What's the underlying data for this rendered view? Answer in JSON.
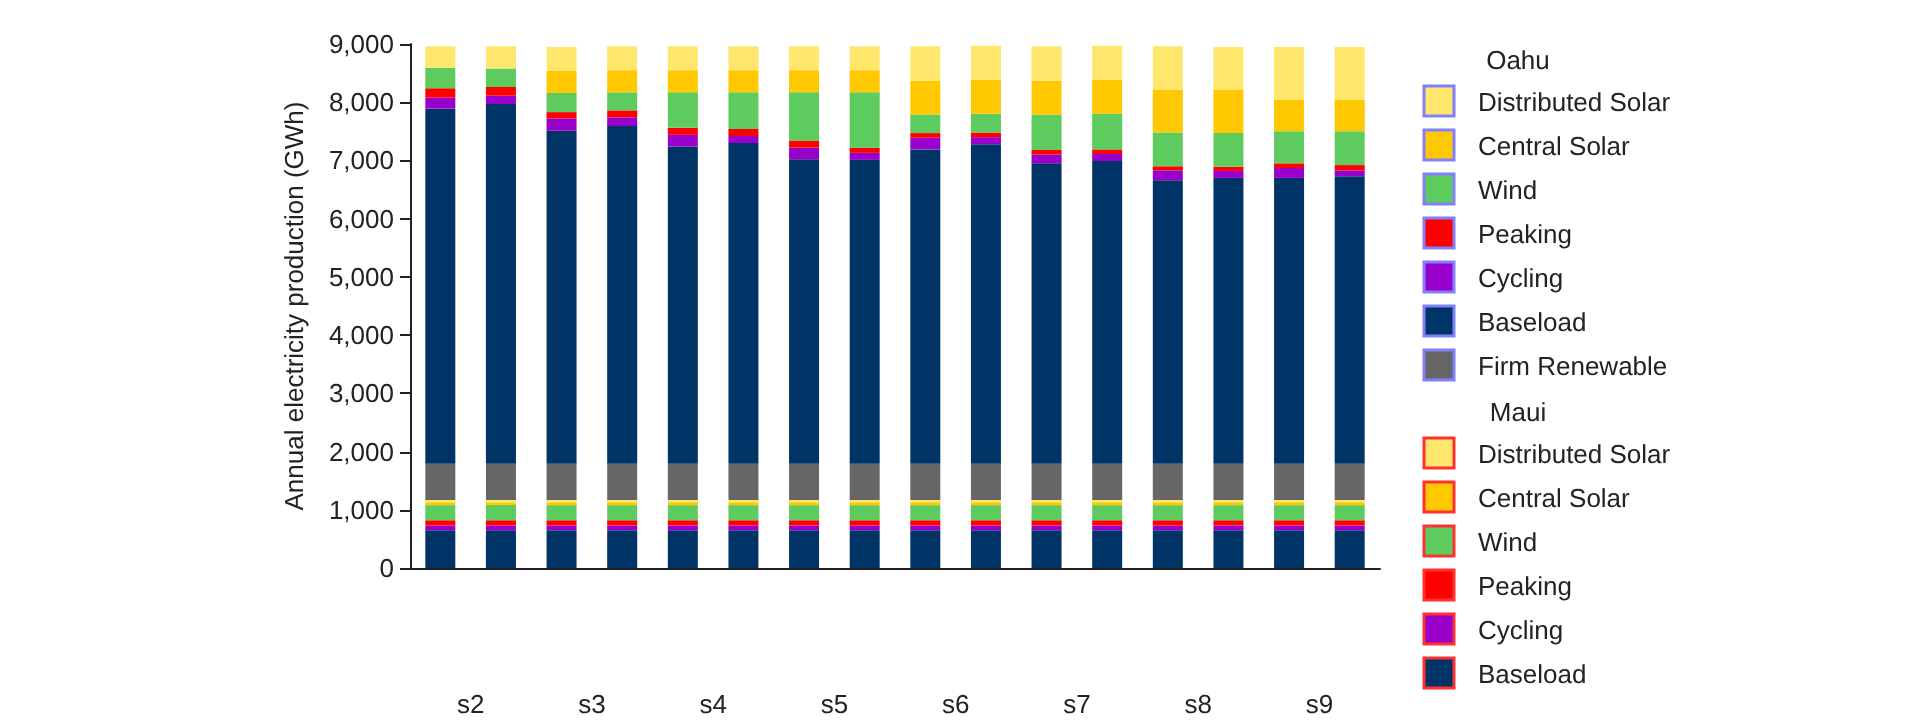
{
  "chart_data": {
    "type": "bar",
    "stacked": true,
    "ylabel": "Annual electricity production (GWh)",
    "legend_title": [
      "Oahu",
      "Maui"
    ],
    "legend": "right",
    "annotations": [
      "s2",
      "s3",
      "s4",
      "s5",
      "s6",
      "s7",
      "s8",
      "s9"
    ],
    "categories": [
      null,
      null,
      null,
      null,
      null,
      null,
      null,
      null,
      null,
      null,
      null,
      null,
      null,
      null,
      null,
      null
    ],
    "ylim": [
      0,
      9000
    ],
    "yticks": [
      {
        "value": 0,
        "label": "0"
      },
      {
        "value": 1000,
        "label": "1,000"
      },
      {
        "value": 2000,
        "label": "2,000"
      },
      {
        "value": 3000,
        "label": "3,000"
      },
      {
        "value": 4000,
        "label": "4,000"
      },
      {
        "value": 5000,
        "label": "5,000"
      },
      {
        "value": 6000,
        "label": "6,000"
      },
      {
        "value": 7000,
        "label": "7,000"
      },
      {
        "value": 8000,
        "label": "8,000"
      },
      {
        "value": 9000,
        "label": "9,000"
      }
    ],
    "series": [
      {
        "name": "Baseload",
        "color": "#003366",
        "values": [
          650,
          650,
          650,
          650,
          650,
          650,
          650,
          650,
          650,
          650,
          650,
          650,
          650,
          650,
          650,
          650
        ]
      },
      {
        "name": "Cycling",
        "color": "#9900cc",
        "values": [
          80,
          80,
          80,
          80,
          80,
          80,
          80,
          80,
          80,
          80,
          80,
          80,
          80,
          80,
          80,
          80
        ]
      },
      {
        "name": "Peaking",
        "color": "#ff0000",
        "values": [
          90,
          90,
          90,
          90,
          90,
          90,
          90,
          90,
          90,
          90,
          90,
          90,
          90,
          90,
          90,
          90
        ]
      },
      {
        "name": "Wind",
        "color": "#5ecb5e",
        "values": [
          260,
          260,
          260,
          260,
          260,
          260,
          260,
          260,
          260,
          260,
          260,
          260,
          260,
          260,
          260,
          260
        ]
      },
      {
        "name": "Central Solar",
        "color": "#ffc800",
        "values": [
          50,
          50,
          50,
          50,
          50,
          50,
          50,
          50,
          50,
          50,
          50,
          50,
          50,
          50,
          50,
          50
        ]
      },
      {
        "name": "Distributed Solar",
        "color": "#ffe66d",
        "values": [
          40,
          40,
          40,
          40,
          40,
          40,
          40,
          40,
          40,
          40,
          40,
          40,
          40,
          40,
          40,
          40
        ]
      },
      {
        "name": "Firm Renewable",
        "color": "#666666",
        "values": [
          620,
          620,
          620,
          620,
          620,
          620,
          620,
          620,
          620,
          620,
          620,
          620,
          620,
          620,
          620,
          620
        ]
      },
      {
        "name": "Baseload",
        "color": "#003366",
        "values": [
          6100,
          6180,
          5720,
          5800,
          5450,
          5510,
          5230,
          5220,
          5400,
          5490,
          5160,
          5200,
          4870,
          4910,
          4910,
          4940
        ]
      },
      {
        "name": "Cycling",
        "color": "#9900cc",
        "values": [
          190,
          140,
          210,
          150,
          200,
          120,
          200,
          120,
          200,
          120,
          150,
          120,
          170,
          120,
          170,
          100
        ]
      },
      {
        "name": "Peaking",
        "color": "#ff0000",
        "values": [
          160,
          150,
          110,
          120,
          120,
          120,
          120,
          90,
          80,
          80,
          80,
          80,
          70,
          70,
          80,
          90
        ]
      },
      {
        "name": "Wind",
        "color": "#5ecb5e",
        "values": [
          350,
          320,
          330,
          310,
          610,
          630,
          830,
          950,
          320,
          320,
          610,
          610,
          580,
          580,
          550,
          580
        ]
      },
      {
        "name": "Central Solar",
        "color": "#ffc800",
        "values": [
          0,
          0,
          380,
          380,
          380,
          380,
          380,
          380,
          580,
          580,
          580,
          580,
          740,
          740,
          540,
          540
        ]
      },
      {
        "name": "Distributed Solar",
        "color": "#ffe66d",
        "values": [
          370,
          380,
          410,
          410,
          410,
          410,
          410,
          410,
          590,
          590,
          590,
          590,
          740,
          740,
          910,
          910
        ]
      }
    ]
  }
}
